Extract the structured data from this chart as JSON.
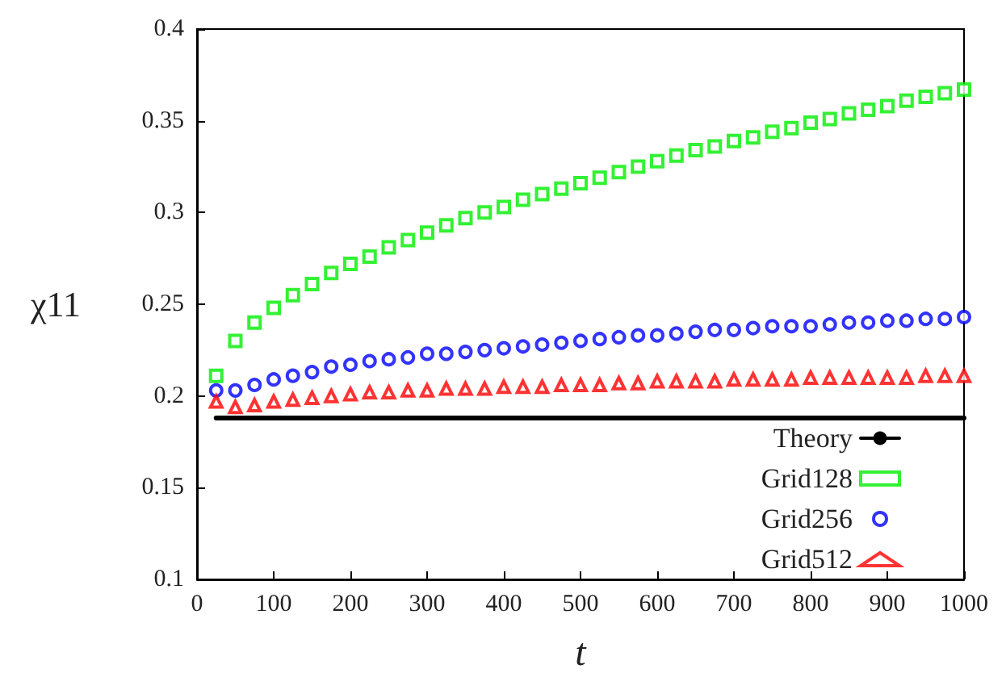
{
  "chart_data": {
    "type": "scatter",
    "xlabel": "t",
    "ylabel": "χ11",
    "x": [
      25,
      50,
      75,
      100,
      125,
      150,
      175,
      200,
      225,
      250,
      275,
      300,
      325,
      350,
      375,
      400,
      425,
      450,
      475,
      500,
      525,
      550,
      575,
      600,
      625,
      650,
      675,
      700,
      725,
      750,
      775,
      800,
      825,
      850,
      875,
      900,
      925,
      950,
      975,
      1000
    ],
    "series": [
      {
        "name": "Theory",
        "type": "line",
        "color": "#000000",
        "marker": "none",
        "line_style": "solid",
        "x": [
          25,
          1000
        ],
        "values": [
          0.188,
          0.188
        ]
      },
      {
        "name": "Grid128",
        "color": "#00ee00",
        "marker": "square",
        "values": [
          0.211,
          0.23,
          0.24,
          0.248,
          0.255,
          0.261,
          0.267,
          0.272,
          0.276,
          0.281,
          0.285,
          0.289,
          0.293,
          0.297,
          0.3,
          0.303,
          0.307,
          0.31,
          0.313,
          0.316,
          0.319,
          0.322,
          0.325,
          0.328,
          0.331,
          0.334,
          0.336,
          0.339,
          0.341,
          0.344,
          0.346,
          0.349,
          0.351,
          0.354,
          0.356,
          0.358,
          0.361,
          0.363,
          0.365,
          0.367
        ]
      },
      {
        "name": "Grid256",
        "color": "#0000ff",
        "marker": "circle",
        "values": [
          0.203,
          0.203,
          0.206,
          0.209,
          0.211,
          0.213,
          0.216,
          0.217,
          0.219,
          0.22,
          0.221,
          0.223,
          0.223,
          0.224,
          0.225,
          0.226,
          0.227,
          0.228,
          0.229,
          0.23,
          0.231,
          0.232,
          0.233,
          0.233,
          0.234,
          0.235,
          0.236,
          0.236,
          0.237,
          0.238,
          0.238,
          0.238,
          0.239,
          0.24,
          0.24,
          0.241,
          0.241,
          0.242,
          0.242,
          0.243
        ]
      },
      {
        "name": "Grid512",
        "color": "#ff0000",
        "marker": "triangle",
        "values": [
          0.197,
          0.194,
          0.195,
          0.197,
          0.198,
          0.199,
          0.2,
          0.201,
          0.202,
          0.202,
          0.203,
          0.203,
          0.204,
          0.204,
          0.204,
          0.205,
          0.205,
          0.205,
          0.206,
          0.206,
          0.206,
          0.207,
          0.207,
          0.208,
          0.208,
          0.208,
          0.208,
          0.209,
          0.209,
          0.209,
          0.209,
          0.21,
          0.21,
          0.21,
          0.21,
          0.21,
          0.21,
          0.211,
          0.211,
          0.211
        ]
      }
    ],
    "xlim": [
      0,
      1000
    ],
    "xticks": [
      0,
      100,
      200,
      300,
      400,
      500,
      600,
      700,
      800,
      900,
      1000
    ],
    "ylim": [
      0.1,
      0.4
    ],
    "yticks": [
      0.1,
      0.15,
      0.2,
      0.25,
      0.3,
      0.35,
      0.4
    ],
    "grid": false,
    "legend": "bottom right"
  }
}
